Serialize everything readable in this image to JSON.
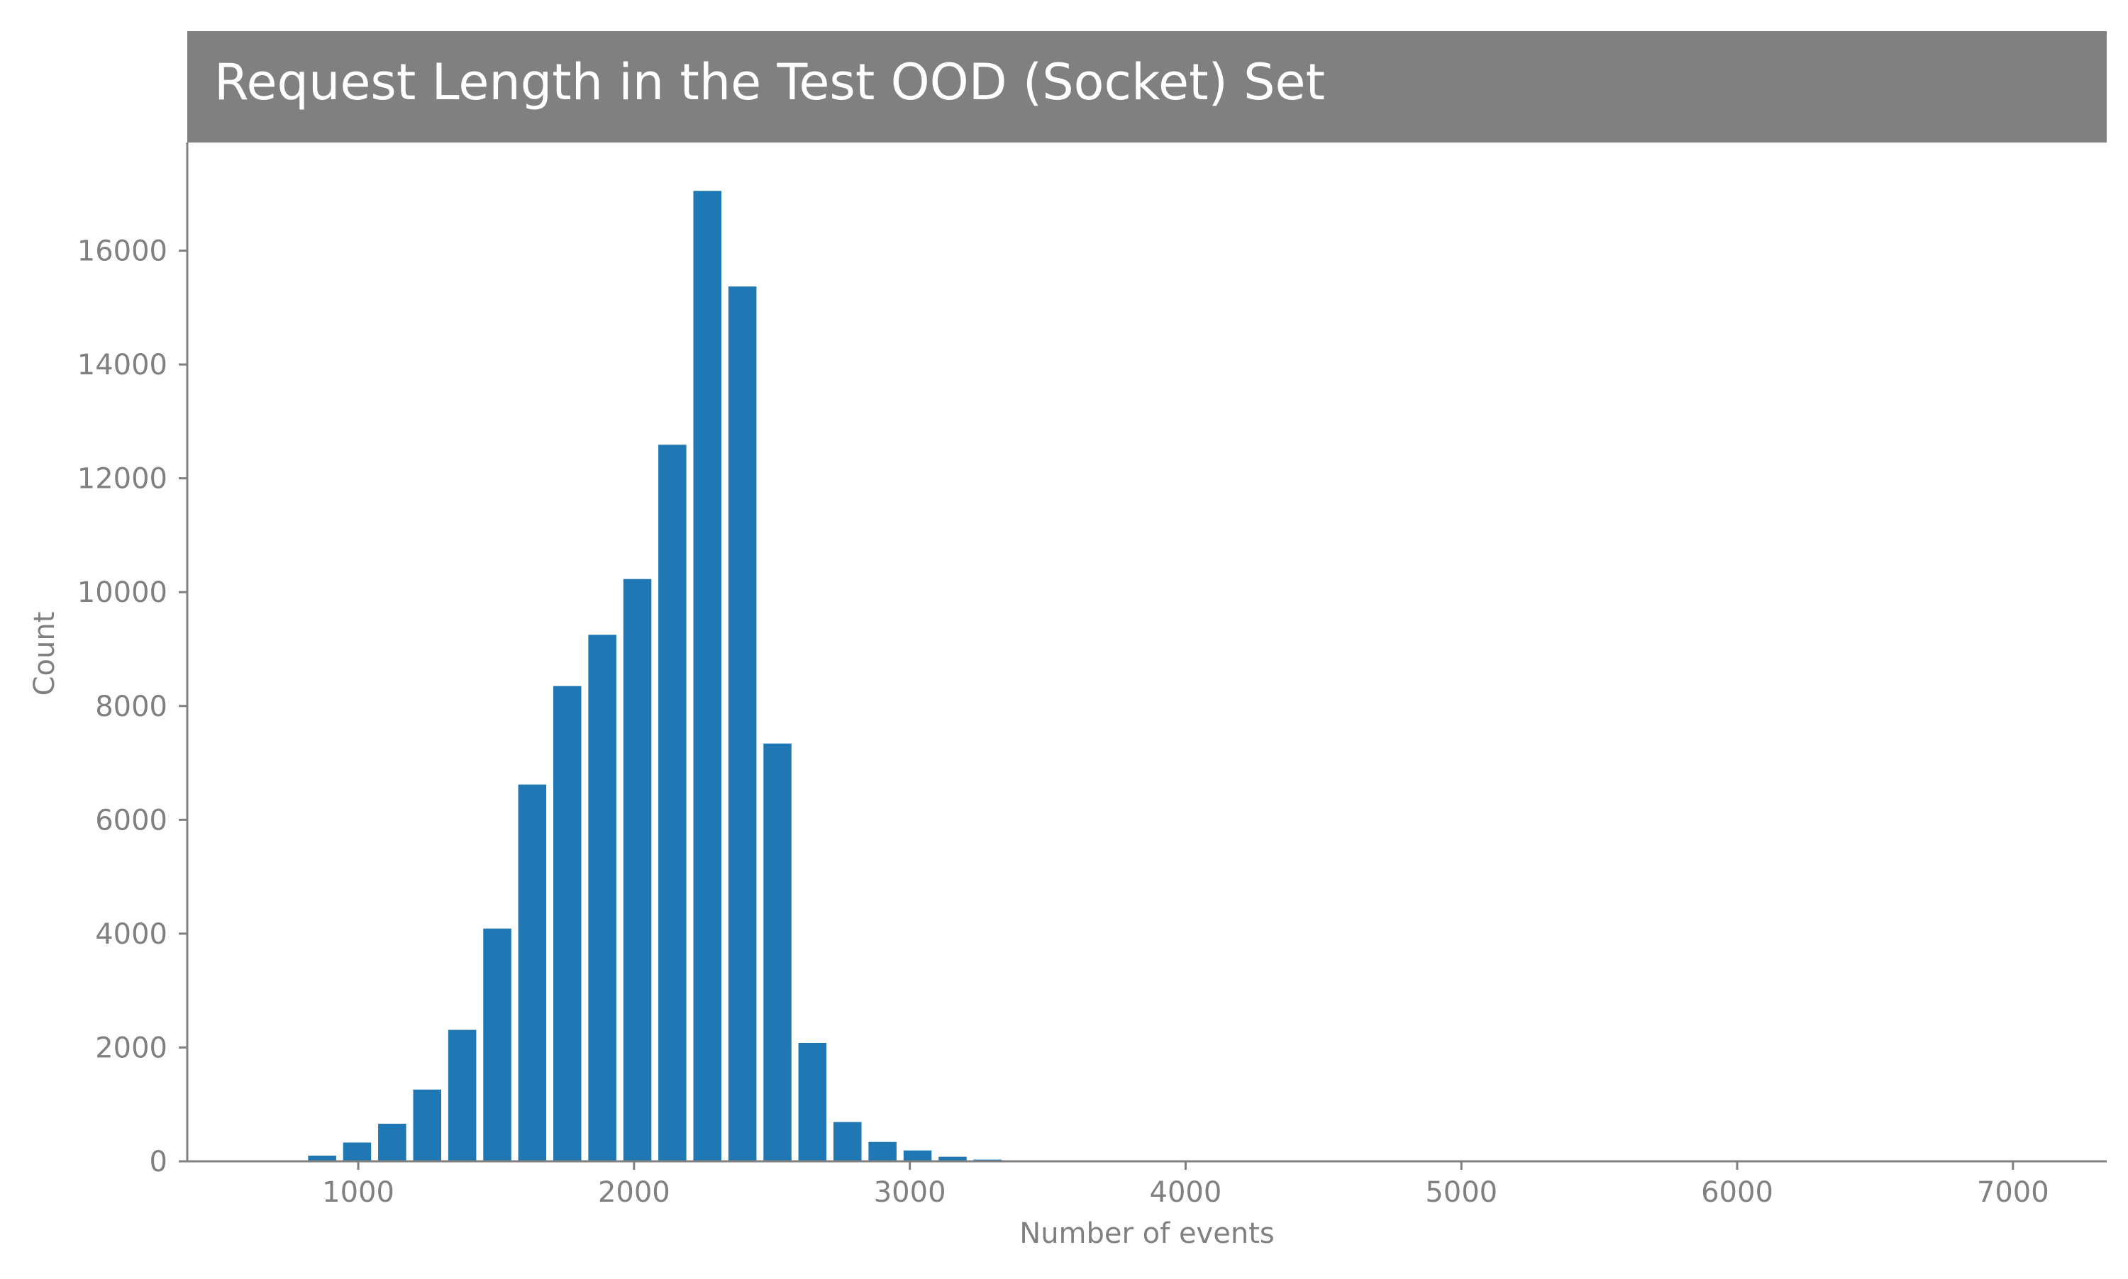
{
  "chart_data": {
    "type": "bar",
    "title": "Request Length in the Test OOD (Socket) Set",
    "xlabel": "Number of events",
    "ylabel": "Count",
    "xlim": [
      380,
      7340
    ],
    "ylim": [
      0,
      17900
    ],
    "xticks": [
      1000,
      2000,
      3000,
      4000,
      5000,
      6000,
      7000
    ],
    "yticks": [
      0,
      2000,
      4000,
      6000,
      8000,
      10000,
      12000,
      14000,
      16000
    ],
    "bin_width": 127,
    "grid": false,
    "bins": [
      {
        "x": 869,
        "value": 100
      },
      {
        "x": 996,
        "value": 330
      },
      {
        "x": 1123,
        "value": 660
      },
      {
        "x": 1250,
        "value": 1260
      },
      {
        "x": 1377,
        "value": 2310
      },
      {
        "x": 1504,
        "value": 4090
      },
      {
        "x": 1631,
        "value": 6620
      },
      {
        "x": 1758,
        "value": 8350
      },
      {
        "x": 1885,
        "value": 9250
      },
      {
        "x": 2012,
        "value": 10230
      },
      {
        "x": 2139,
        "value": 12590
      },
      {
        "x": 2266,
        "value": 17050
      },
      {
        "x": 2393,
        "value": 15370
      },
      {
        "x": 2520,
        "value": 7340
      },
      {
        "x": 2647,
        "value": 2080
      },
      {
        "x": 2774,
        "value": 690
      },
      {
        "x": 2901,
        "value": 340
      },
      {
        "x": 3028,
        "value": 190
      },
      {
        "x": 3155,
        "value": 80
      },
      {
        "x": 3282,
        "value": 30
      }
    ],
    "colors": {
      "bar": "#1f77b4",
      "title_bg": "#808080",
      "title_text": "#ffffff",
      "axis": "#808080",
      "tick_text": "#808080"
    }
  }
}
